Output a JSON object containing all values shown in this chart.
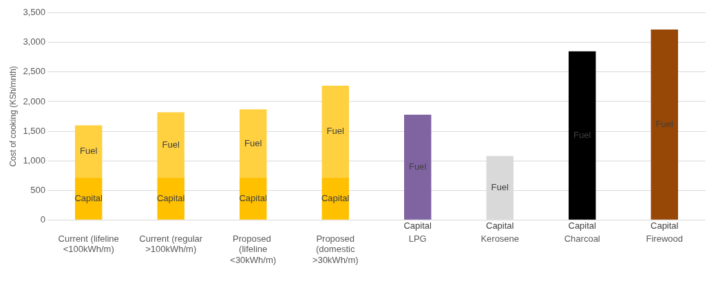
{
  "chart_data": {
    "type": "bar",
    "ylabel": "Cost of cooking (KSh/mnth)",
    "stacked": true,
    "grid": "y",
    "legend": false,
    "categories": [
      "Current (lifeline <100kWh/m)",
      "Current (regular >100kWh/m)",
      "Proposed  (lifeline <30kWh/m)",
      "Proposed (domestic >30kWh/m)",
      "LPG",
      "Kerosene",
      "Charcoal",
      "Firewood"
    ],
    "series": [
      {
        "name": "Capital",
        "colors": [
          "#ffc000",
          "#ffc000",
          "#ffc000",
          "#ffc000",
          "#8064a2",
          "#d9d9d9",
          "#000000",
          "#974706"
        ],
        "values": [
          710,
          710,
          710,
          710,
          0,
          0,
          0,
          0
        ]
      },
      {
        "name": "Fuel",
        "colors": [
          "#ffd03f",
          "#ffd03f",
          "#ffd03f",
          "#ffd03f",
          "#8064a2",
          "#d9d9d9",
          "#000000",
          "#974706"
        ],
        "values": [
          890,
          1110,
          1160,
          1560,
          1780,
          1080,
          2850,
          3220
        ]
      }
    ],
    "ylim": [
      0,
      3500
    ],
    "yticks": [
      0,
      500,
      {
        "value": 1000,
        "label": "1,000"
      },
      {
        "value": 1500,
        "label": "1,500"
      },
      {
        "value": 2000,
        "label": "2,000"
      },
      {
        "value": 2500,
        "label": "2,500"
      },
      {
        "value": 3000,
        "label": "3,000"
      },
      {
        "value": 3500,
        "label": "3,500"
      }
    ]
  }
}
